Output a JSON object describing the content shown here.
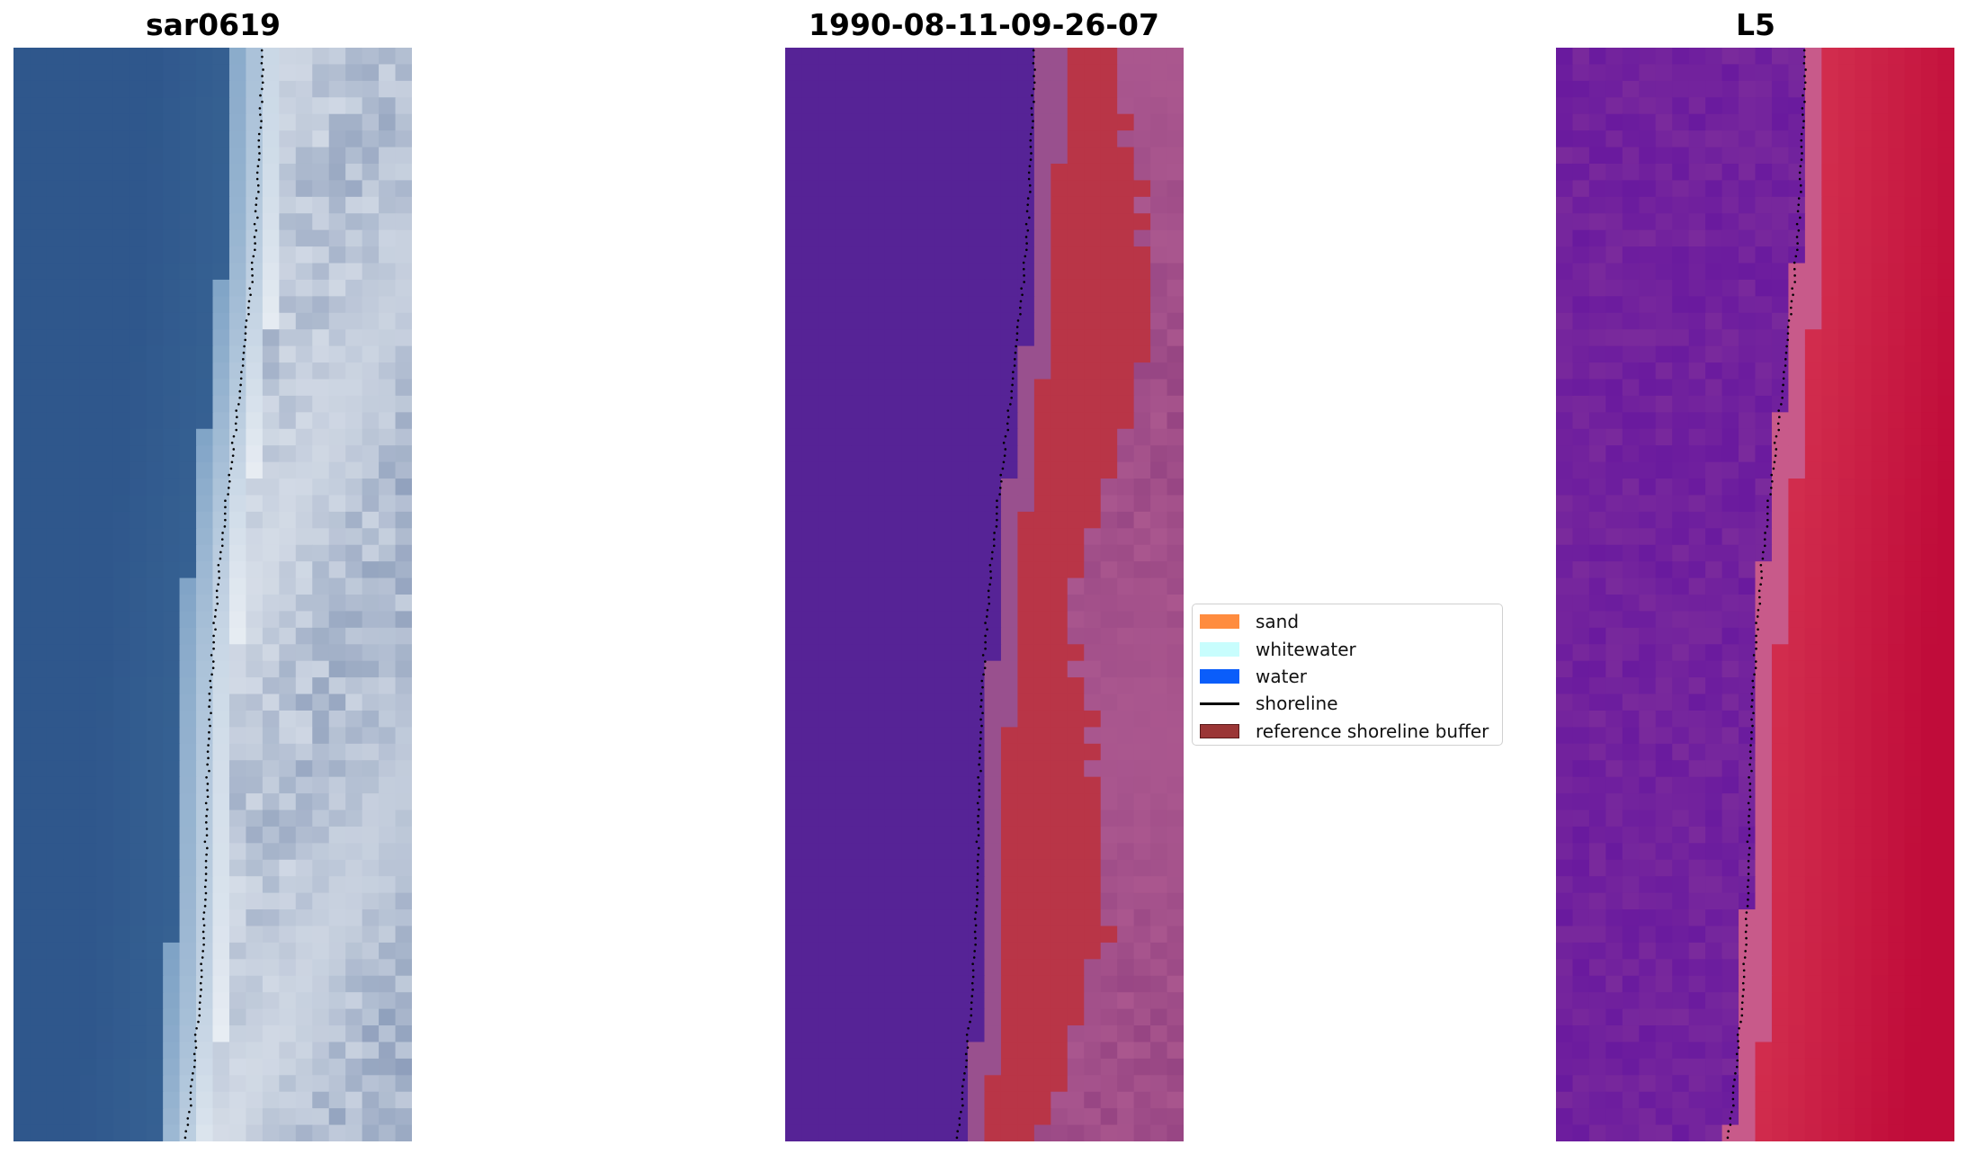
{
  "panels": [
    {
      "title": "sar0619",
      "kind": "rgb"
    },
    {
      "title": "1990-08-11-09-26-07",
      "kind": "classified"
    },
    {
      "title": "L5",
      "kind": "index"
    }
  ],
  "legend": {
    "items": [
      {
        "label": "sand",
        "color": "#ff8c3f",
        "type": "patch"
      },
      {
        "label": "whitewater",
        "color": "#c8fdfd",
        "type": "patch"
      },
      {
        "label": "water",
        "color": "#0a5dfa",
        "type": "patch"
      },
      {
        "label": "shoreline",
        "color": "#000000",
        "type": "line"
      },
      {
        "label": "reference shoreline buffer",
        "color": "#9b3636",
        "type": "patch",
        "border": "#5a1a1a"
      }
    ]
  },
  "colors": {
    "sar_water": "#2f578c",
    "sar_surf": "#e8edf3",
    "classified_water": "#562396",
    "classified_buffer": "#b93547",
    "classified_land": "#b25e93",
    "index_low": "#7a2a9c",
    "index_high": "#c00c3a"
  }
}
